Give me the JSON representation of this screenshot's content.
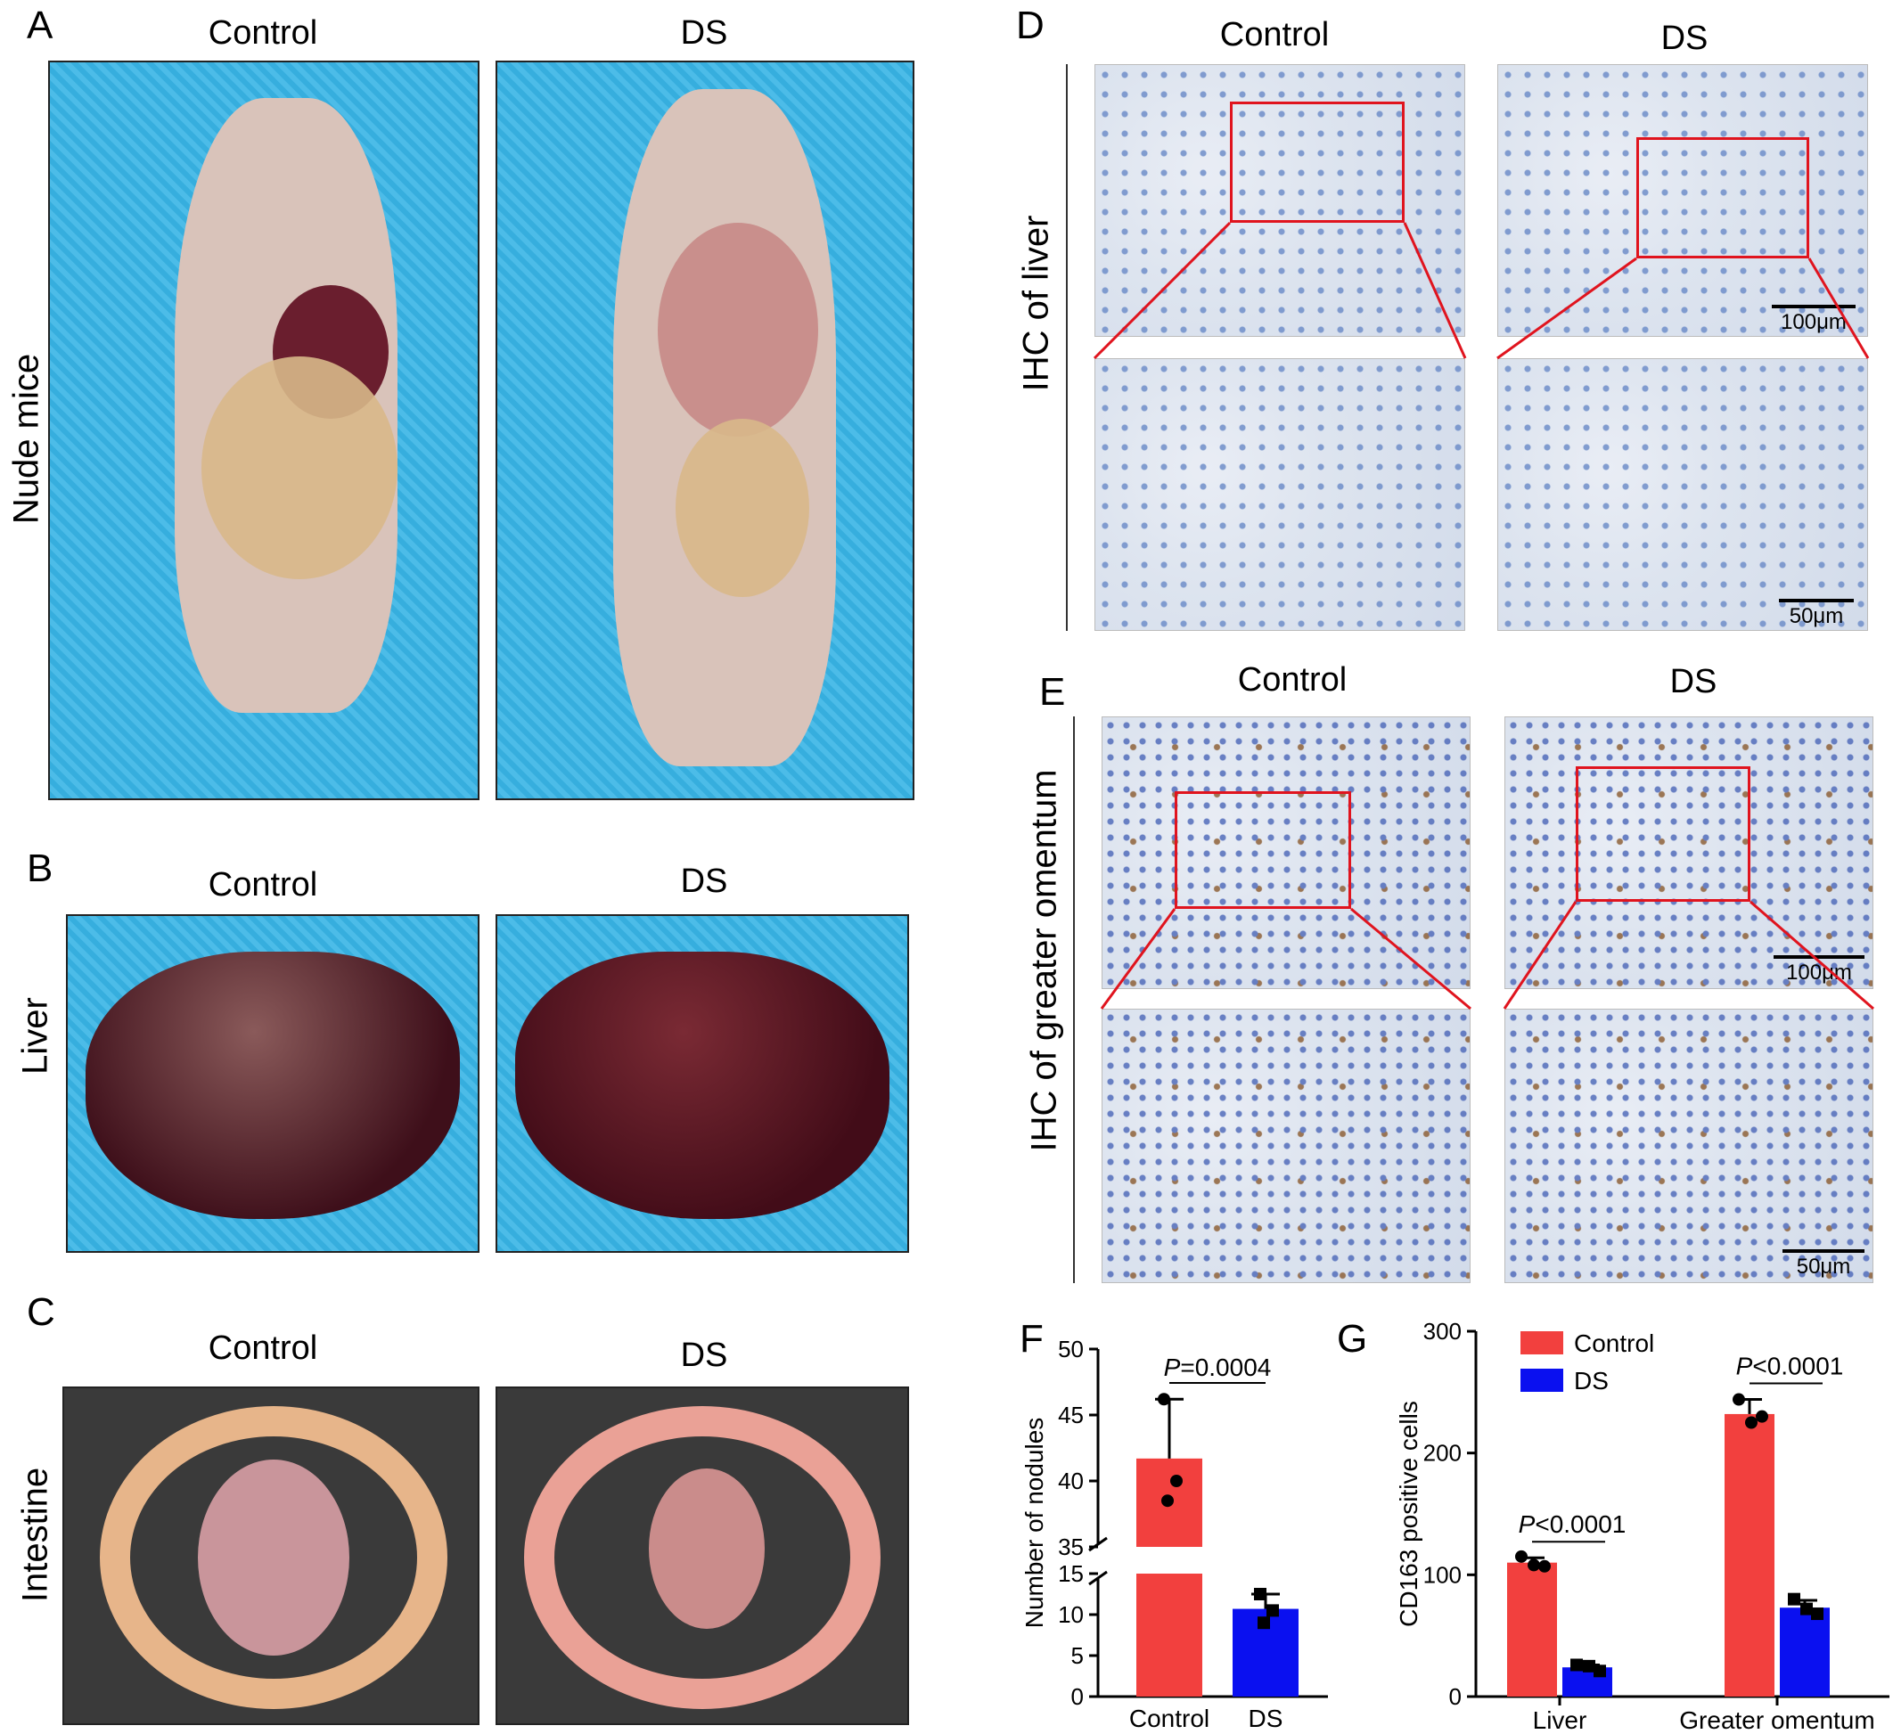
{
  "panels": {
    "A": "A",
    "B": "B",
    "C": "C",
    "D": "D",
    "E": "E",
    "F": "F",
    "G": "G"
  },
  "groups": {
    "control": "Control",
    "ds": "DS"
  },
  "row_labels": {
    "nude_mice": "Nude mice",
    "liver": "Liver",
    "intestine": "Intestine",
    "ihc_liver": "IHC of liver",
    "ihc_omentum": "IHC of greater omentum"
  },
  "scalebars": {
    "s100": "100μm",
    "s50": "50μm"
  },
  "colors": {
    "control": "#f2403e",
    "ds": "#0a10f0",
    "roi": "#e0141e"
  },
  "chart_data": [
    {
      "id": "F",
      "type": "bar",
      "categories": [
        "Control",
        "DS"
      ],
      "values": [
        41.7,
        10.7
      ],
      "errors": [
        4.5,
        1.8
      ],
      "points": [
        [
          46.2,
          40.0,
          38.5
        ],
        [
          12.5,
          10.5,
          9.0
        ]
      ],
      "ylabel": "Number of nodules",
      "ylim": [
        0,
        50
      ],
      "yaxis_break": [
        15,
        35
      ],
      "yticks": [
        0,
        5,
        10,
        15,
        35,
        40,
        45,
        50
      ],
      "annotation": {
        "p": "P",
        "text": "=0.0004"
      }
    },
    {
      "id": "G",
      "type": "bar",
      "categories": [
        "Liver",
        "Greater omentum"
      ],
      "series": [
        {
          "name": "Control",
          "values": [
            110,
            232
          ],
          "errors": [
            4,
            12
          ],
          "points": [
            [
              115,
              108,
              107
            ],
            [
              244,
              225,
              230
            ]
          ]
        },
        {
          "name": "DS",
          "values": [
            24,
            73
          ],
          "errors": [
            2,
            6
          ],
          "points": [
            [
              26,
              25,
              21
            ],
            [
              80,
              72,
              68
            ]
          ]
        }
      ],
      "ylabel": "CD163 positive cells",
      "ylim": [
        0,
        300
      ],
      "yticks": [
        0,
        100,
        200,
        300
      ],
      "legend_position": "top-left",
      "annotations": [
        {
          "p": "P",
          "text": "<0.0001"
        },
        {
          "p": "P",
          "text": "<0.0001"
        }
      ]
    }
  ]
}
